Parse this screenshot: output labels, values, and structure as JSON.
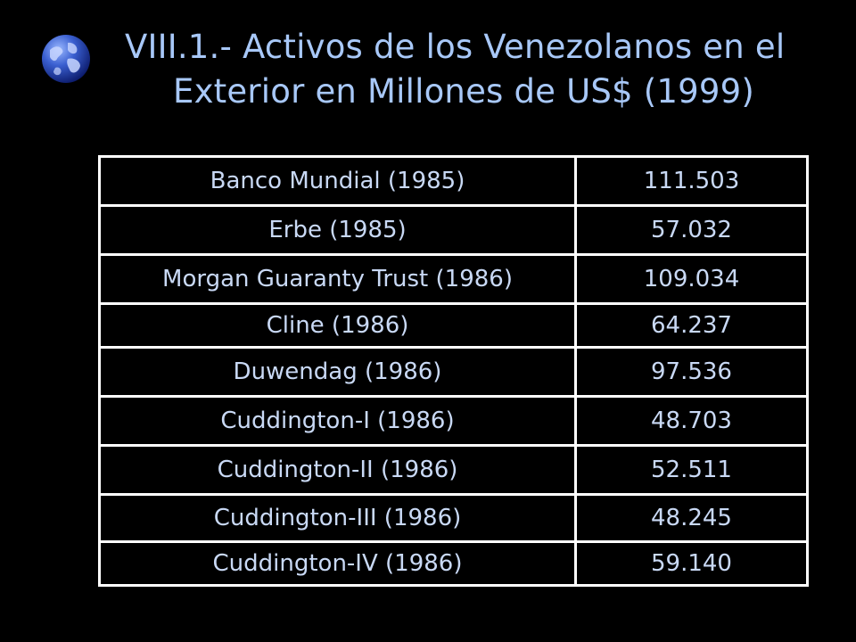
{
  "slide": {
    "title_line1": "VIII.1.- Activos de los Venezolanos en el",
    "title_line2": "Exterior en Millones de US$ (1999)"
  },
  "table": {
    "rows": [
      {
        "label": "Banco Mundial (1985)",
        "value": "111.503"
      },
      {
        "label": "Erbe (1985)",
        "value": "57.032"
      },
      {
        "label": "Morgan Guaranty Trust (1986)",
        "value": "109.034"
      },
      {
        "label": "Cline (1986)",
        "value": "64.237"
      },
      {
        "label": "Duwendag (1986)",
        "value": "97.536"
      },
      {
        "label": "Cuddington-I (1986)",
        "value": "48.703"
      },
      {
        "label": "Cuddington-II (1986)",
        "value": "52.511"
      },
      {
        "label": "Cuddington-III (1986)",
        "value": "48.245"
      },
      {
        "label": "Cuddington-IV (1986)",
        "value": "59.140"
      }
    ]
  },
  "icons": {
    "globe": "globe-icon"
  },
  "colors": {
    "background": "#000000",
    "title_text": "#a8c8f8",
    "table_text": "#c9d9f5",
    "table_border": "#ffffff"
  }
}
